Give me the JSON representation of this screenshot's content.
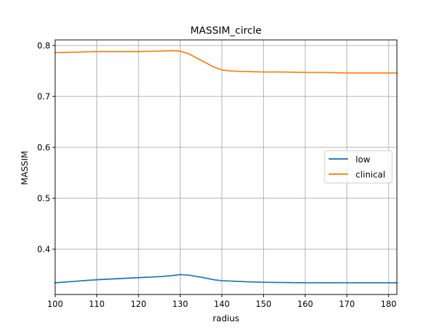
{
  "chart_data": {
    "type": "line",
    "title": "MASSIM_circle",
    "xlabel": "radius",
    "ylabel": "MASSIM",
    "xlim": [
      100,
      182
    ],
    "ylim": [
      0.311,
      0.811
    ],
    "x_ticks": [
      100,
      110,
      120,
      130,
      140,
      150,
      160,
      170,
      180
    ],
    "y_ticks": [
      0.4,
      0.5,
      0.6,
      0.7,
      0.8
    ],
    "x_tick_labels": [
      "100",
      "110",
      "120",
      "130",
      "140",
      "150",
      "160",
      "170",
      "180"
    ],
    "y_tick_labels": [
      "0.4",
      "0.5",
      "0.6",
      "0.7",
      "0.8"
    ],
    "grid": true,
    "legend_position": "center-right",
    "series": [
      {
        "name": "low",
        "color": "#1f77b4",
        "x": [
          100,
          105,
          110,
          115,
          120,
          125,
          128,
          130,
          132,
          135,
          138,
          140,
          143,
          146,
          150,
          155,
          160,
          165,
          170,
          175,
          182
        ],
        "y": [
          0.334,
          0.337,
          0.34,
          0.342,
          0.344,
          0.346,
          0.348,
          0.35,
          0.349,
          0.345,
          0.34,
          0.338,
          0.337,
          0.336,
          0.335,
          0.3345,
          0.334,
          0.334,
          0.334,
          0.334,
          0.334
        ]
      },
      {
        "name": "clinical",
        "color": "#ff7f0e",
        "x": [
          100,
          105,
          110,
          115,
          120,
          125,
          128,
          130,
          132,
          135,
          138,
          140,
          142,
          145,
          150,
          155,
          160,
          165,
          170,
          175,
          182
        ],
        "y": [
          0.786,
          0.787,
          0.788,
          0.788,
          0.788,
          0.789,
          0.79,
          0.789,
          0.784,
          0.771,
          0.758,
          0.752,
          0.75,
          0.749,
          0.748,
          0.748,
          0.747,
          0.747,
          0.746,
          0.746,
          0.746
        ]
      }
    ]
  }
}
